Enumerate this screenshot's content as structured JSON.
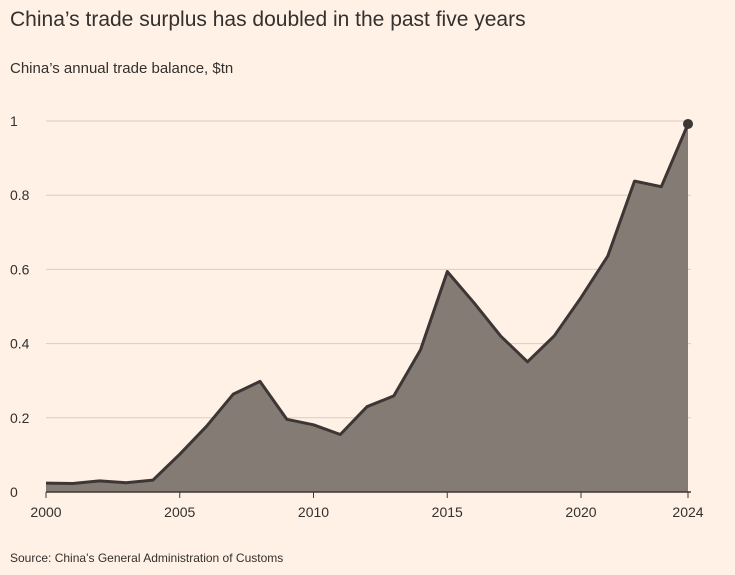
{
  "title": "China’s trade surplus has doubled in the past five years",
  "subtitle": "China’s annual trade balance, $tn",
  "source": "Source: China’s General Administration of Customs",
  "colors": {
    "background": "#FFF1E5",
    "area_fill": "#857B75",
    "line": "#3D3635",
    "grid": "#D9CCC1",
    "text": "#33302E"
  },
  "chart_data": {
    "type": "area",
    "x": [
      2000,
      2001,
      2002,
      2003,
      2004,
      2005,
      2006,
      2007,
      2008,
      2009,
      2010,
      2011,
      2012,
      2013,
      2014,
      2015,
      2016,
      2017,
      2018,
      2019,
      2020,
      2021,
      2022,
      2023,
      2024
    ],
    "series": [
      {
        "values": [
          0.024,
          0.023,
          0.03,
          0.025,
          0.032,
          0.102,
          0.177,
          0.264,
          0.298,
          0.196,
          0.181,
          0.155,
          0.23,
          0.259,
          0.383,
          0.594,
          0.51,
          0.42,
          0.351,
          0.421,
          0.524,
          0.636,
          0.838,
          0.823,
          0.992
        ]
      }
    ],
    "x_ticks": [
      2000,
      2005,
      2010,
      2015,
      2020,
      2024
    ],
    "y_ticks": [
      0,
      0.2,
      0.4,
      0.6,
      0.8,
      1
    ],
    "y_tick_labels": [
      "0",
      "0.2",
      "0.4",
      "0.6",
      "0.8",
      "1"
    ],
    "xlim": [
      2000,
      2024
    ],
    "ylim": [
      0,
      1
    ],
    "grid": "horizontal",
    "end_marker": true,
    "xlabel": "",
    "ylabel": ""
  }
}
